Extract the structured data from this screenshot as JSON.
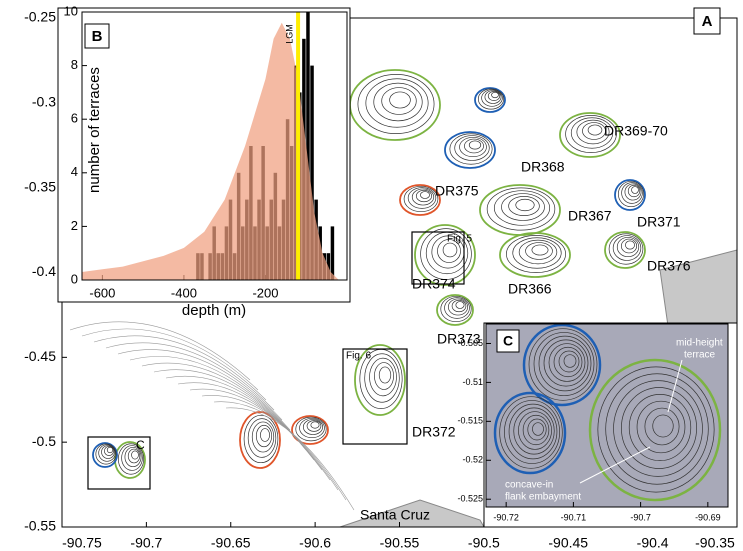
{
  "chart_data": [
    {
      "type": "map",
      "panel": "A",
      "xlim": [
        -90.75,
        -90.35
      ],
      "ylim": [
        -0.55,
        -0.25
      ],
      "xticks": [
        -90.75,
        -90.7,
        -90.65,
        -90.6,
        -90.55,
        -90.5,
        -90.45,
        -90.4,
        -90.35
      ],
      "yticks": [
        -0.55,
        -0.5,
        -0.45,
        -0.4,
        -0.35,
        -0.3,
        -0.25
      ],
      "annotations": [
        "DR369-70",
        "DR368",
        "DR375",
        "DR367",
        "DR371",
        "DR376",
        "DR374",
        "DR366",
        "DR373",
        "DR372",
        "Fig. 5",
        "Fig. 6",
        "Santa Cruz"
      ]
    },
    {
      "type": "histogram",
      "panel": "B",
      "xlabel": "depth (m)",
      "ylabel": "number of terraces",
      "xlim": [
        -650,
        0
      ],
      "ylim": [
        0,
        10
      ],
      "xticks": [
        -600,
        -400,
        -200
      ],
      "yticks": [
        0,
        2,
        4,
        6,
        8,
        10
      ],
      "bins": [
        -370,
        -360,
        -350,
        -340,
        -330,
        -320,
        -310,
        -300,
        -290,
        -280,
        -270,
        -260,
        -250,
        -240,
        -230,
        -220,
        -210,
        -200,
        -190,
        -180,
        -170,
        -160,
        -150,
        -140,
        -130,
        -120,
        -110,
        -100,
        -90,
        -80,
        -70,
        -60,
        -50,
        -40,
        -30
      ],
      "values": [
        1,
        1,
        0,
        1,
        2,
        1,
        1,
        2,
        3,
        1,
        4,
        2,
        3,
        5,
        2,
        3,
        5,
        2,
        3,
        4,
        2,
        3,
        6,
        5,
        8,
        7,
        9,
        10,
        8,
        3,
        2,
        1,
        1,
        2
      ],
      "color": "#000000",
      "area": {
        "color": "#f0a080",
        "x": [
          -650,
          -600,
          -550,
          -500,
          -450,
          -400,
          -350,
          -300,
          -250,
          -220,
          -200,
          -180,
          -160,
          -140,
          -120,
          -100,
          -80,
          -60,
          -40,
          -20
        ],
        "values": [
          0.3,
          0.4,
          0.5,
          0.7,
          0.9,
          1.2,
          1.8,
          3,
          5,
          6.5,
          7.5,
          9,
          9.6,
          9,
          7.5,
          5,
          2.5,
          1,
          0.3,
          0
        ]
      },
      "lgm": {
        "label": "LGM",
        "value": -120,
        "color": "#ffee00"
      }
    },
    {
      "type": "map",
      "panel": "C",
      "xlim": [
        -90.723,
        -90.687
      ],
      "ylim": [
        -0.526,
        -0.5025
      ],
      "xticks": [
        -90.72,
        -90.71,
        -90.7,
        -90.69
      ],
      "yticks": [
        -0.525,
        -0.52,
        -0.515,
        -0.51,
        -0.505
      ],
      "annotations": [
        [
          "mid-height",
          "terrace"
        ],
        [
          "concave-in",
          "flank embayment"
        ]
      ]
    }
  ]
}
